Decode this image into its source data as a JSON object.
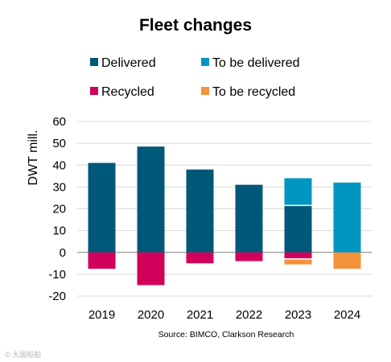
{
  "chart_data": {
    "type": "bar",
    "title": "Fleet changes",
    "ylabel": "DWT mill.",
    "xlabel": "",
    "source": "Source: BIMCO, Clarkson Research",
    "categories": [
      "2019",
      "2020",
      "2021",
      "2022",
      "2023",
      "2024"
    ],
    "ylim": [
      -20,
      60
    ],
    "yticks": [
      60,
      50,
      40,
      30,
      20,
      10,
      0,
      -10,
      -20
    ],
    "grid": true,
    "legend_position": "top",
    "stacked": true,
    "series": [
      {
        "name": "Delivered",
        "color": "#005879",
        "values": [
          41,
          48.5,
          38,
          31,
          21.5,
          0
        ]
      },
      {
        "name": "To be delivered",
        "color": "#0096c2",
        "values": [
          0,
          0,
          0,
          0,
          12.5,
          32
        ]
      },
      {
        "name": "Recycled",
        "color": "#d1005a",
        "values": [
          -7.5,
          -15,
          -5,
          -4,
          -3,
          0
        ]
      },
      {
        "name": "To be recycled",
        "color": "#f4923a",
        "values": [
          0,
          0,
          0,
          0,
          -2.5,
          -7.5
        ]
      }
    ]
  },
  "watermark": "© 大国船舶"
}
